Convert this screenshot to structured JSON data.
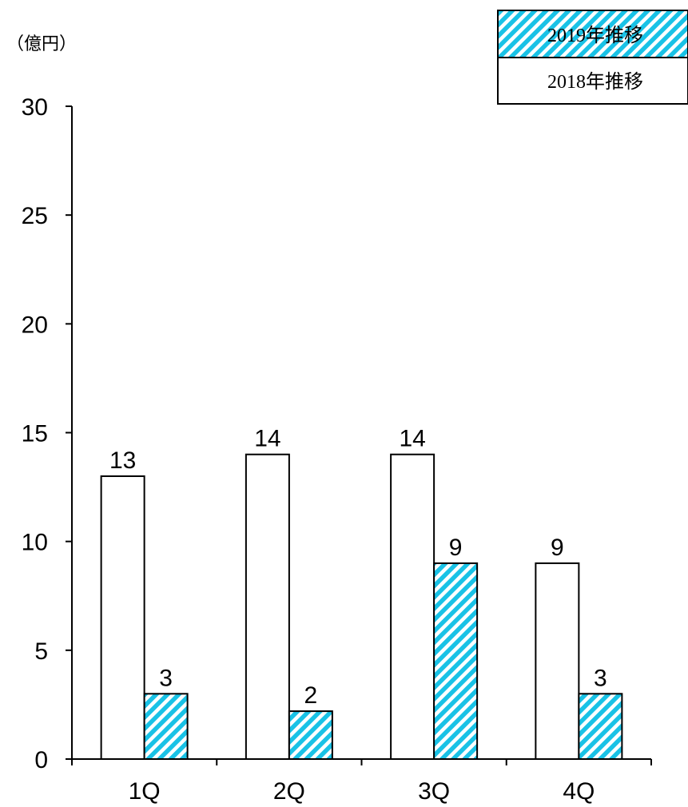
{
  "chart_data": {
    "type": "bar",
    "categories": [
      "1Q",
      "2Q",
      "3Q",
      "4Q"
    ],
    "series": [
      {
        "name": "2018年推移",
        "values": [
          13,
          14,
          14,
          9
        ],
        "labels": [
          "13",
          "14",
          "14",
          "9"
        ],
        "fill": "#ffffff",
        "pattern": "none"
      },
      {
        "name": "2019年推移",
        "values": [
          3,
          2.2,
          9,
          3
        ],
        "labels": [
          "3",
          "2",
          "9",
          "3"
        ],
        "fill": "#19c2e6",
        "pattern": "diagonal-stripes"
      }
    ],
    "unit_label": "（億円）",
    "ylim": [
      0,
      30
    ],
    "yticks": [
      0,
      5,
      10,
      15,
      20,
      25,
      30
    ],
    "legend_position": "top-right",
    "legend_order": [
      "2019年推移",
      "2018年推移"
    ],
    "grid": false
  }
}
